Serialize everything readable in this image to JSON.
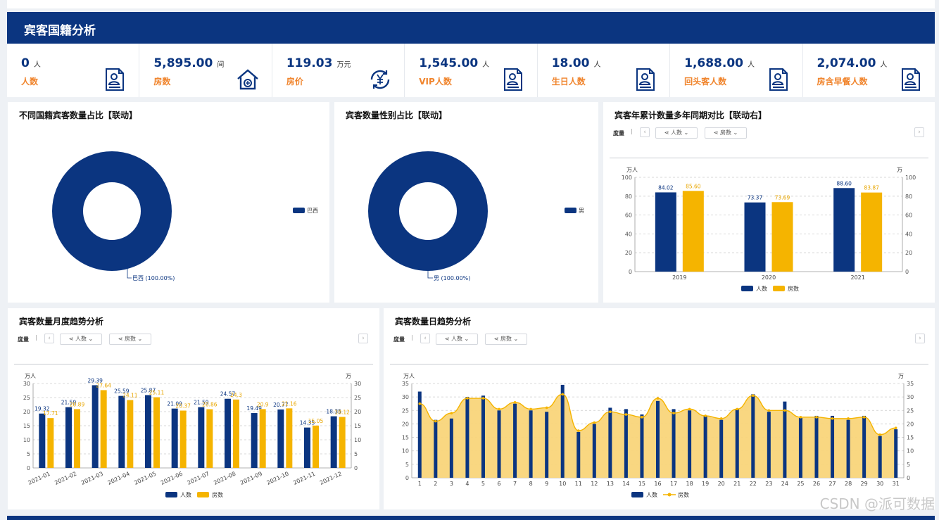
{
  "header": {
    "title": "宾客国籍分析"
  },
  "kpis": [
    {
      "value": "0",
      "unit": "人",
      "label": "人数",
      "icon": "document-user-icon"
    },
    {
      "value": "5,895.00",
      "unit": "间",
      "label": "房数",
      "icon": "house-icon"
    },
    {
      "value": "119.03",
      "unit": "万元",
      "label": "房价",
      "icon": "yen-refresh-icon"
    },
    {
      "value": "1,545.00",
      "unit": "人",
      "label": "VIP人数",
      "icon": "document-user-icon"
    },
    {
      "value": "18.00",
      "unit": "人",
      "label": "生日人数",
      "icon": "document-user-icon"
    },
    {
      "value": "1,688.00",
      "unit": "人",
      "label": "回头客人数",
      "icon": "document-user-icon"
    },
    {
      "value": "2,074.00",
      "unit": "人",
      "label": "房含早餐人数",
      "icon": "document-user-icon"
    }
  ],
  "panels": {
    "nationality": {
      "title": "不同国籍宾客数量占比【联动】"
    },
    "gender": {
      "title": "宾客数量性别占比【联动】"
    },
    "yearly": {
      "title": "宾客年累计数量多年同期对比【联动右】",
      "dim_label": "度量",
      "btn1": "人数",
      "btn2": "房数"
    },
    "monthly": {
      "title": "宾客数量月度趋势分析",
      "dim_label": "度量",
      "btn1": "人数",
      "btn2": "房数"
    },
    "daily": {
      "title": "宾客数量日趋势分析",
      "dim_label": "度量",
      "btn1": "人数",
      "btn2": "房数"
    }
  },
  "watermark": "CSDN @派可数据",
  "chart_data": [
    {
      "type": "pie",
      "title": "不同国籍宾客数量占比【联动】",
      "categories": [
        "巴西"
      ],
      "values": [
        100.0
      ],
      "legend": [
        "巴西"
      ],
      "slice_label": "巴西 (100.00%)",
      "colors": [
        "#0b3580"
      ],
      "legend_position": "right"
    },
    {
      "type": "pie",
      "title": "宾客数量性别占比【联动】",
      "categories": [
        "男"
      ],
      "values": [
        100.0
      ],
      "legend": [
        "男"
      ],
      "slice_label": "男 (100.00%)",
      "colors": [
        "#0b3580"
      ],
      "legend_position": "right"
    },
    {
      "type": "bar",
      "title": "宾客年累计数量多年同期对比【联动右】",
      "categories": [
        "2019",
        "2020",
        "2021"
      ],
      "series": [
        {
          "name": "人数",
          "values": [
            84.02,
            73.37,
            88.6
          ],
          "labels": [
            "84.02",
            "73.37",
            "88.60"
          ],
          "color": "#0b3580"
        },
        {
          "name": "房数",
          "values": [
            85.6,
            73.69,
            83.87
          ],
          "labels": [
            "85.60",
            "73.69",
            "83.87"
          ],
          "color": "#f5b400"
        }
      ],
      "ylabel_left": "万人",
      "ylabel_right": "万",
      "ylim": [
        0,
        100
      ],
      "yticks": [
        0,
        20,
        40,
        60,
        80,
        100
      ],
      "grid": true,
      "legend_position": "bottom"
    },
    {
      "type": "bar",
      "title": "宾客数量月度趋势分析",
      "categories": [
        "2021-01",
        "2021-02",
        "2021-03",
        "2021-04",
        "2021-05",
        "2021-06",
        "2021-07",
        "2021-08",
        "2021-09",
        "2021-10",
        "2021-11",
        "2021-12"
      ],
      "series": [
        {
          "name": "人数",
          "values": [
            19.32,
            21.59,
            29.39,
            25.59,
            25.87,
            21.09,
            21.59,
            24.57,
            19.49,
            20.77,
            14.35,
            18.35
          ],
          "color": "#0b3580"
        },
        {
          "name": "房数",
          "values": [
            17.71,
            20.89,
            27.64,
            24.11,
            25.11,
            20.37,
            20.86,
            24.3,
            20.9,
            21.16,
            15.05,
            18.12
          ],
          "color": "#f5b400"
        }
      ],
      "ylabel_left": "万人",
      "ylabel_right": "万",
      "ylim": [
        0,
        30
      ],
      "yticks": [
        0,
        5,
        10,
        15,
        20,
        25,
        30
      ],
      "grid": true,
      "legend_position": "bottom"
    },
    {
      "type": "bar",
      "title": "宾客数量日趋势分析",
      "categories": [
        "1",
        "2",
        "3",
        "4",
        "5",
        "6",
        "7",
        "8",
        "9",
        "10",
        "11",
        "12",
        "13",
        "14",
        "15",
        "16",
        "17",
        "18",
        "19",
        "20",
        "21",
        "22",
        "23",
        "24",
        "25",
        "26",
        "27",
        "28",
        "29",
        "30",
        "31"
      ],
      "series": [
        {
          "name": "人数",
          "kind": "bar",
          "values": [
            32,
            21.5,
            22,
            30,
            30.5,
            25,
            27.5,
            25,
            24.5,
            34.5,
            17,
            20,
            26,
            25.5,
            23.5,
            28.5,
            25.5,
            25,
            23,
            21.5,
            25.5,
            31,
            24.5,
            28.3,
            22.2,
            23,
            23,
            21.5,
            23,
            15.5,
            18
          ],
          "color": "#0b3580"
        },
        {
          "name": "房数",
          "kind": "area",
          "values": [
            27.5,
            21,
            24,
            29.5,
            29.5,
            25.5,
            28,
            25.5,
            26,
            31,
            17.5,
            20.5,
            24.5,
            23.5,
            22.5,
            29.5,
            24,
            25.5,
            23,
            22,
            25.5,
            30.5,
            25,
            25,
            22.5,
            22.5,
            22,
            22,
            22.5,
            16,
            18.5
          ],
          "color": "#f5b400"
        }
      ],
      "ylabel_left": "万人",
      "ylabel_right": "万",
      "ylim": [
        0,
        35
      ],
      "yticks": [
        0,
        5,
        10,
        15,
        20,
        25,
        30,
        35
      ],
      "grid": true,
      "legend_position": "bottom"
    }
  ]
}
